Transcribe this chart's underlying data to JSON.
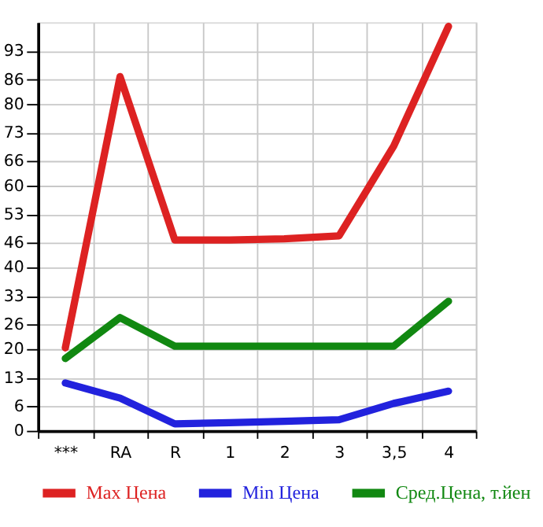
{
  "chart_data": {
    "type": "line",
    "categories": [
      "***",
      "RA",
      "R",
      "1",
      "2",
      "3",
      "3,5",
      "4"
    ],
    "series": [
      {
        "name": "Max Цена",
        "color": "#dd2222",
        "values": [
          20.3,
          86.7,
          46.7,
          46.7,
          47,
          47.7,
          69.7,
          99
        ]
      },
      {
        "name": "Min Цена",
        "color": "#2222dd",
        "values": [
          11.7,
          8,
          1.7,
          2,
          2.3,
          2.7,
          6.7,
          9.7
        ]
      },
      {
        "name": "Сред.Цена, т.йен",
        "color": "#118811",
        "values": [
          17.7,
          27.7,
          20.7,
          20.7,
          20.7,
          20.7,
          20.7,
          31.7
        ]
      }
    ],
    "ylim": [
      0,
      100
    ],
    "yticks": [
      0,
      6,
      13,
      20,
      26,
      33,
      40,
      46,
      53,
      60,
      66,
      73,
      80,
      86,
      93
    ],
    "grid": true,
    "legend": "bottom",
    "marker": "none",
    "line_style": "solid"
  }
}
